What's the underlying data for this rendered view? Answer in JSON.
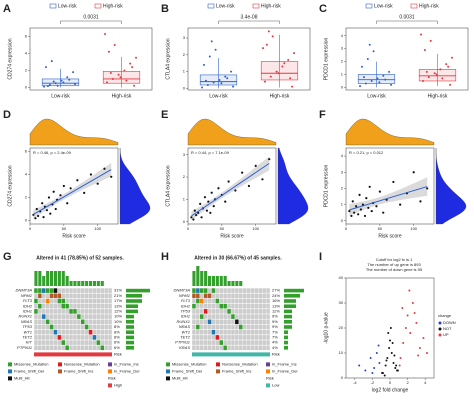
{
  "chart_data": [
    {
      "type": "box",
      "label": "A",
      "ylabel": "CD274 expression",
      "pvalue": "0.0031",
      "categories": [
        "Low-risk",
        "High-risk"
      ],
      "ylim": [
        -0.3,
        7
      ],
      "yticks": [
        0,
        2,
        4,
        6
      ],
      "series": [
        {
          "name": "Low-risk",
          "color": "#2f63c9",
          "stats": [
            0,
            0.2,
            0.5,
            1.0,
            2.2
          ],
          "points": [
            0.1,
            0.3,
            0.5,
            0.8,
            1.2,
            1.8,
            2.4,
            3.1,
            0.2,
            0.6,
            0.9,
            0.4,
            0.15,
            0.7
          ]
        },
        {
          "name": "High-risk",
          "color": "#e4393f",
          "stats": [
            0,
            0.5,
            1.0,
            1.9,
            3.6
          ],
          "points": [
            0.2,
            0.6,
            1.0,
            1.5,
            2.0,
            2.8,
            3.5,
            4.2,
            5.0,
            1.2,
            0.8,
            2.4,
            6.3,
            1.7
          ]
        }
      ]
    },
    {
      "type": "box",
      "label": "B",
      "ylabel": "CTLA4 expression",
      "pvalue": "3.4e-08",
      "categories": [
        "Low-risk",
        "High-risk"
      ],
      "ylim": [
        -0.1,
        3.6
      ],
      "yticks": [
        0,
        1,
        2,
        3
      ],
      "series": [
        {
          "name": "Low-risk",
          "color": "#2f63c9",
          "stats": [
            0,
            0.2,
            0.4,
            0.8,
            1.8
          ],
          "points": [
            0.05,
            0.2,
            0.35,
            0.5,
            0.7,
            1.0,
            1.4,
            1.9,
            2.3,
            0.3,
            0.6,
            0.1,
            0.45,
            2.8
          ]
        },
        {
          "name": "High-risk",
          "color": "#e4393f",
          "stats": [
            0.05,
            0.5,
            0.9,
            1.6,
            3.2
          ],
          "points": [
            0.1,
            0.4,
            0.7,
            1.0,
            1.3,
            1.7,
            2.1,
            2.6,
            3.1,
            0.9,
            1.5,
            0.6,
            2.4,
            3.4
          ]
        }
      ]
    },
    {
      "type": "box",
      "label": "C",
      "ylabel": "PDCD1 expression",
      "pvalue": "0.0031",
      "categories": [
        "Low-risk",
        "High-risk"
      ],
      "ylim": [
        -0.2,
        4.6
      ],
      "yticks": [
        0,
        1,
        2,
        3,
        4
      ],
      "series": [
        {
          "name": "Low-risk",
          "color": "#2f63c9",
          "stats": [
            0,
            0.3,
            0.6,
            1.0,
            2.0
          ],
          "points": [
            0.1,
            0.3,
            0.5,
            0.7,
            0.9,
            1.2,
            1.6,
            2.2,
            2.8,
            0.4,
            0.6,
            0.2,
            0.8,
            3.3
          ]
        },
        {
          "name": "High-risk",
          "color": "#e4393f",
          "stats": [
            0.1,
            0.5,
            0.9,
            1.4,
            2.6
          ],
          "points": [
            0.2,
            0.5,
            0.8,
            1.1,
            1.4,
            1.8,
            2.3,
            2.9,
            3.6,
            1.0,
            0.7,
            1.6,
            4.1,
            1.2
          ]
        }
      ]
    },
    {
      "type": "scatter",
      "label": "D",
      "annotation": "R = 0.46, p = 2.4e-09",
      "xlabel": "Risk score",
      "ylabel": "CD274 expression",
      "xlim": [
        0,
        130
      ],
      "xticks": [
        0,
        50,
        100
      ],
      "ylim": [
        -0.3,
        6.3
      ],
      "yticks": [
        0,
        2,
        4,
        6
      ],
      "color": "#111111",
      "fit_color": "#2b5fd9",
      "top_density_color": "#f0a01a",
      "right_density_color": "#1f2be0",
      "x": [
        5,
        8,
        10,
        12,
        15,
        18,
        20,
        22,
        25,
        28,
        30,
        33,
        35,
        38,
        40,
        45,
        50,
        55,
        60,
        70,
        80,
        90,
        100,
        110,
        120
      ],
      "y": [
        0.5,
        0.2,
        1.0,
        0.4,
        0.8,
        1.5,
        0.3,
        1.2,
        0.9,
        2.0,
        0.6,
        1.4,
        2.5,
        1.0,
        1.8,
        2.2,
        3.0,
        1.5,
        2.8,
        3.5,
        2.4,
        4.0,
        3.2,
        4.5,
        3.8
      ]
    },
    {
      "type": "scatter",
      "label": "E",
      "annotation": "R = 0.44, p = 7.1e-09",
      "xlabel": "Risk score",
      "ylabel": "CTLA4 expression",
      "xlim": [
        0,
        130
      ],
      "xticks": [
        0,
        50,
        100
      ],
      "ylim": [
        -0.1,
        3.3
      ],
      "yticks": [
        0,
        1,
        2,
        3
      ],
      "color": "#111111",
      "fit_color": "#2b5fd9",
      "top_density_color": "#f0a01a",
      "right_density_color": "#1f2be0",
      "x": [
        5,
        8,
        10,
        12,
        15,
        18,
        20,
        22,
        25,
        28,
        30,
        33,
        35,
        38,
        40,
        45,
        50,
        55,
        60,
        70,
        80,
        90,
        100,
        110,
        120
      ],
      "y": [
        0.2,
        0.1,
        0.5,
        0.3,
        0.4,
        0.8,
        0.2,
        0.6,
        1.1,
        0.5,
        0.9,
        0.4,
        1.3,
        0.7,
        1.0,
        1.5,
        1.2,
        0.9,
        1.8,
        1.4,
        2.2,
        1.6,
        2.5,
        1.9,
        2.8
      ]
    },
    {
      "type": "scatter",
      "label": "F",
      "annotation": "R = 0.21, p = 0.012",
      "xlabel": "Risk score",
      "ylabel": "PDCD1 expression",
      "xlim": [
        0,
        130
      ],
      "xticks": [
        0,
        50,
        100
      ],
      "ylim": [
        -0.2,
        4.5
      ],
      "yticks": [
        0,
        1,
        2,
        3,
        4
      ],
      "color": "#111111",
      "fit_color": "#2b5fd9",
      "top_density_color": "#f0a01a",
      "right_density_color": "#1f2be0",
      "x": [
        5,
        8,
        10,
        12,
        15,
        18,
        20,
        22,
        25,
        28,
        30,
        33,
        35,
        38,
        40,
        45,
        50,
        55,
        60,
        70,
        80,
        90,
        100,
        110,
        120
      ],
      "y": [
        0.6,
        0.3,
        1.2,
        0.5,
        0.9,
        0.4,
        1.6,
        0.7,
        1.0,
        0.3,
        1.4,
        0.8,
        2.1,
        0.6,
        1.1,
        0.9,
        1.8,
        0.5,
        1.3,
        2.4,
        1.0,
        1.7,
        3.0,
        1.2,
        2.0
      ]
    },
    {
      "type": "oncoplot",
      "label": "G",
      "title": "Altered in 41 (78.85%) of 52 samples.",
      "genes": [
        "DNMT3A",
        "NPM1",
        "FLT3",
        "IDH2",
        "IDH1",
        "RUNX1",
        "NRAS",
        "TP53",
        "WT1",
        "TET2",
        "KIT",
        "PTPN11"
      ],
      "percents": [
        "31%",
        "21%",
        "17%",
        "13%",
        "12%",
        "10%",
        "10%",
        "8%",
        "8%",
        "8%",
        "6%",
        "6%"
      ],
      "matrix": [
        [
          1,
          1,
          4,
          1,
          1,
          7,
          0,
          0,
          0,
          0,
          0,
          0,
          0,
          0,
          0,
          0,
          0,
          0,
          0,
          0
        ],
        [
          0,
          5,
          0,
          0,
          5,
          5,
          5,
          0,
          0,
          0,
          0,
          0,
          0,
          0,
          0,
          0,
          0,
          0,
          0,
          0
        ],
        [
          1,
          0,
          0,
          6,
          0,
          0,
          1,
          1,
          0,
          0,
          0,
          0,
          0,
          0,
          0,
          0,
          0,
          0,
          0,
          0
        ],
        [
          0,
          1,
          0,
          0,
          0,
          0,
          0,
          1,
          1,
          0,
          0,
          0,
          0,
          0,
          0,
          0,
          0,
          0,
          0,
          0
        ],
        [
          1,
          0,
          0,
          0,
          0,
          0,
          0,
          0,
          0,
          1,
          1,
          0,
          0,
          0,
          0,
          0,
          0,
          0,
          0,
          0
        ],
        [
          0,
          0,
          4,
          0,
          0,
          0,
          0,
          0,
          0,
          0,
          0,
          1,
          0,
          0,
          0,
          0,
          0,
          0,
          0,
          0
        ],
        [
          0,
          0,
          0,
          1,
          0,
          0,
          0,
          0,
          0,
          0,
          0,
          0,
          1,
          0,
          0,
          0,
          0,
          0,
          0,
          0
        ],
        [
          0,
          0,
          0,
          0,
          1,
          0,
          0,
          0,
          0,
          0,
          0,
          0,
          0,
          1,
          0,
          0,
          0,
          0,
          0,
          0
        ],
        [
          0,
          0,
          0,
          0,
          0,
          4,
          0,
          0,
          0,
          0,
          0,
          0,
          0,
          0,
          2,
          0,
          0,
          0,
          0,
          0
        ],
        [
          0,
          0,
          0,
          0,
          0,
          0,
          2,
          0,
          0,
          0,
          0,
          0,
          0,
          0,
          0,
          4,
          0,
          0,
          0,
          0
        ],
        [
          0,
          0,
          0,
          0,
          0,
          0,
          0,
          1,
          0,
          0,
          0,
          0,
          0,
          0,
          0,
          0,
          1,
          0,
          0,
          0
        ],
        [
          0,
          0,
          0,
          0,
          0,
          0,
          0,
          0,
          1,
          0,
          0,
          0,
          0,
          0,
          0,
          0,
          0,
          1,
          0,
          0
        ]
      ],
      "variant_types": [
        {
          "name": "Missense_Mutation",
          "color": "#33a02c"
        },
        {
          "name": "Nonsense_Mutation",
          "color": "#e31a1c"
        },
        {
          "name": "In_Frame_Ins",
          "color": "#6a3d9a"
        },
        {
          "name": "Frame_Shift_Del",
          "color": "#1f78b4"
        },
        {
          "name": "Frame_Shift_Ins",
          "color": "#b15928"
        },
        {
          "name": "In_Frame_Del",
          "color": "#ff7f00"
        },
        {
          "name": "Multi_Hit",
          "color": "#111111"
        }
      ],
      "risk_label": "Risk",
      "risk": {
        "name": "High",
        "color": "#e4393f"
      }
    },
    {
      "type": "oncoplot",
      "label": "H",
      "title": "Altered in 30 (66.67%) of 45 samples.",
      "genes": [
        "DNMT3A",
        "NPM1",
        "FLT3",
        "IDH2",
        "TP53",
        "IDH1",
        "RUNX1",
        "NRAS",
        "WT1",
        "TET2",
        "PTPN11",
        "KRAS"
      ],
      "percents": [
        "27%",
        "24%",
        "16%",
        "13%",
        "11%",
        "9%",
        "9%",
        "9%",
        "7%",
        "7%",
        "4%",
        "4%"
      ],
      "matrix": [
        [
          1,
          4,
          1,
          1,
          0,
          1,
          0,
          0,
          0,
          0,
          0,
          0,
          0,
          0,
          0,
          0,
          0,
          0,
          0,
          0
        ],
        [
          5,
          5,
          0,
          5,
          5,
          0,
          0,
          0,
          0,
          0,
          0,
          0,
          0,
          0,
          0,
          0,
          0,
          0,
          0,
          0
        ],
        [
          0,
          1,
          6,
          0,
          0,
          0,
          1,
          0,
          0,
          0,
          0,
          0,
          0,
          0,
          0,
          0,
          0,
          0,
          0,
          0
        ],
        [
          1,
          0,
          0,
          0,
          0,
          0,
          0,
          1,
          1,
          0,
          0,
          0,
          0,
          0,
          0,
          0,
          0,
          0,
          0,
          0
        ],
        [
          0,
          0,
          0,
          2,
          0,
          0,
          0,
          0,
          0,
          1,
          0,
          0,
          0,
          0,
          0,
          0,
          0,
          0,
          0,
          0
        ],
        [
          0,
          0,
          1,
          0,
          0,
          0,
          0,
          0,
          0,
          0,
          1,
          0,
          0,
          0,
          0,
          0,
          0,
          0,
          0,
          0
        ],
        [
          0,
          0,
          0,
          0,
          4,
          0,
          0,
          0,
          0,
          0,
          0,
          7,
          0,
          0,
          0,
          0,
          0,
          0,
          0,
          0
        ],
        [
          0,
          1,
          0,
          0,
          0,
          0,
          0,
          0,
          0,
          0,
          0,
          0,
          1,
          0,
          0,
          0,
          0,
          0,
          0,
          0
        ],
        [
          0,
          0,
          0,
          0,
          0,
          4,
          0,
          0,
          0,
          0,
          0,
          0,
          0,
          0,
          0,
          0,
          0,
          0,
          0,
          0
        ],
        [
          0,
          0,
          0,
          0,
          0,
          0,
          2,
          0,
          0,
          0,
          0,
          0,
          0,
          0,
          0,
          0,
          0,
          0,
          0,
          0
        ],
        [
          0,
          0,
          0,
          0,
          0,
          0,
          0,
          1,
          0,
          0,
          0,
          0,
          0,
          0,
          0,
          0,
          0,
          0,
          0,
          0
        ],
        [
          0,
          0,
          0,
          0,
          0,
          0,
          0,
          0,
          1,
          0,
          0,
          0,
          0,
          0,
          0,
          0,
          0,
          0,
          0,
          0
        ]
      ],
      "variant_types": [
        {
          "name": "Missense_Mutation",
          "color": "#33a02c"
        },
        {
          "name": "Nonsense_Mutation",
          "color": "#e31a1c"
        },
        {
          "name": "In_Frame_Ins",
          "color": "#6a3d9a"
        },
        {
          "name": "Frame_Shift_Del",
          "color": "#1f78b4"
        },
        {
          "name": "Frame_Shift_Ins",
          "color": "#b15928"
        },
        {
          "name": "In_Frame_Del",
          "color": "#ff7f00"
        },
        {
          "name": "Multi_Hit",
          "color": "#111111"
        }
      ],
      "risk_label": "Risk",
      "risk": {
        "name": "Low",
        "color": "#3fb8a8"
      }
    },
    {
      "type": "volcano",
      "label": "I",
      "notes": [
        "Cutoff for log2 fc is 1",
        "The number of up gene is 893",
        "The number of down gene is 95"
      ],
      "xlabel": "log2 fold change",
      "ylabel": "-log10 p-value",
      "xlim": [
        -5,
        5
      ],
      "xticks": [
        -4,
        -2,
        0,
        2,
        4
      ],
      "ylim": [
        0,
        40
      ],
      "yticks": [
        0,
        10,
        20,
        30,
        40
      ],
      "legend_title": "change",
      "series": [
        {
          "name": "DOWN",
          "color": "#2b3fd0",
          "x": [
            -1.2,
            -1.5,
            -1.8,
            -2.2,
            -2.8,
            -3.5,
            -1.3,
            -2.0
          ],
          "y": [
            6,
            10,
            4,
            8,
            3,
            5,
            13,
            2
          ]
        },
        {
          "name": "NOT",
          "color": "#111111",
          "x": [
            -0.8,
            -0.5,
            -0.3,
            -0.1,
            0,
            0.2,
            0.4,
            0.6,
            0.9,
            -0.6,
            -0.2,
            0.1,
            0.3,
            0.5,
            -0.9,
            0.7,
            -0.4,
            0.8
          ],
          "y": [
            2,
            5,
            8,
            12,
            15,
            10,
            6,
            4,
            3,
            1,
            18,
            20,
            14,
            9,
            2,
            5,
            7,
            3
          ]
        },
        {
          "name": "UP",
          "color": "#e4393f",
          "x": [
            1.2,
            1.5,
            1.8,
            2.0,
            2.3,
            2.6,
            3.0,
            3.4,
            3.8,
            4.2,
            1.4,
            2.2,
            2.8,
            1.1,
            3.2
          ],
          "y": [
            8,
            14,
            20,
            25,
            18,
            30,
            22,
            12,
            16,
            10,
            28,
            35,
            26,
            5,
            9
          ]
        }
      ]
    }
  ]
}
